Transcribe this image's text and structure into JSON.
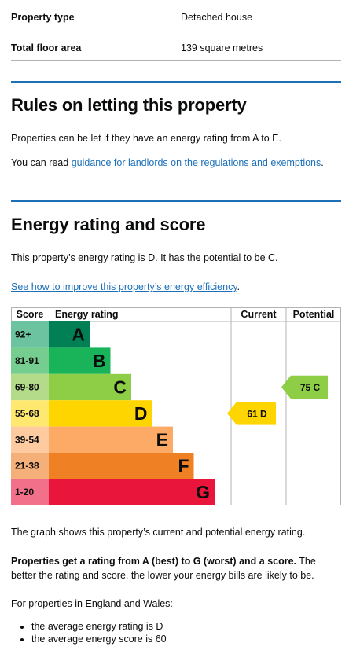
{
  "summary": {
    "rows": [
      {
        "key": "Property type",
        "value": "Detached house"
      },
      {
        "key": "Total floor area",
        "value": "139 square metres"
      }
    ]
  },
  "letting": {
    "heading": "Rules on letting this property",
    "para1": "Properties can be let if they have an energy rating from A to E.",
    "para2_prefix": "You can read ",
    "para2_link": "guidance for landlords on the regulations and exemptions",
    "para2_suffix": "."
  },
  "energy": {
    "heading": "Energy rating and score",
    "para1": "This property’s energy rating is D. It has the potential to be C.",
    "link": "See how to improve this property’s energy efficiency",
    "link_suffix": "."
  },
  "chart_data": {
    "type": "table",
    "headers": {
      "score": "Score",
      "rating": "Energy rating",
      "current": "Current",
      "potential": "Potential"
    },
    "bands": [
      {
        "range": "92+",
        "letter": "A",
        "color": "#008054",
        "score_bg": "#6cc3a0"
      },
      {
        "range": "81-91",
        "letter": "B",
        "color": "#19b459",
        "score_bg": "#75cd8f"
      },
      {
        "range": "69-80",
        "letter": "C",
        "color": "#8dce46",
        "score_bg": "#b3db8a"
      },
      {
        "range": "55-68",
        "letter": "D",
        "color": "#ffd500",
        "score_bg": "#ffe870"
      },
      {
        "range": "39-54",
        "letter": "E",
        "color": "#fcaa65",
        "score_bg": "#fdcb9f"
      },
      {
        "range": "21-38",
        "letter": "F",
        "color": "#ef8023",
        "score_bg": "#f5b07a"
      },
      {
        "range": "1-20",
        "letter": "G",
        "color": "#e9153b",
        "score_bg": "#f2708a"
      }
    ],
    "current": {
      "score": 61,
      "letter": "D",
      "label": "61 D",
      "color": "#ffd500"
    },
    "potential": {
      "score": 75,
      "letter": "C",
      "label": "75 C",
      "color": "#8dce46"
    }
  },
  "after": {
    "graph_note": "The graph shows this property’s current and potential energy rating.",
    "bold_part": "Properties get a rating from A (best) to G (worst) and a score.",
    "rest_part": " The better the rating and score, the lower your energy bills are likely to be.",
    "england": "For properties in England and Wales:",
    "bullets": [
      "the average energy rating is D",
      "the average energy score is 60"
    ]
  }
}
